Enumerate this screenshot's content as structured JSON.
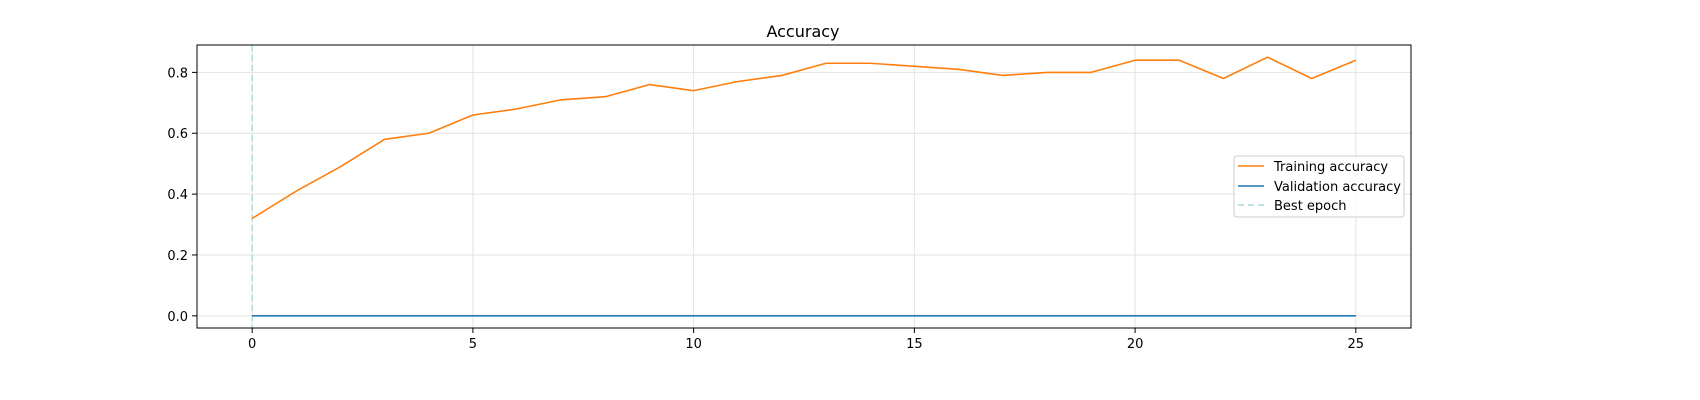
{
  "chart_data": {
    "type": "line",
    "title": "Accuracy",
    "xlabel": "",
    "ylabel": "",
    "x": [
      0,
      1,
      2,
      3,
      4,
      5,
      6,
      7,
      8,
      9,
      10,
      11,
      12,
      13,
      14,
      15,
      16,
      17,
      18,
      19,
      20,
      21,
      22,
      23,
      24,
      25
    ],
    "xlim": [
      -1.25,
      26.25
    ],
    "ylim": [
      -0.04,
      0.89
    ],
    "xticks": [
      0,
      5,
      10,
      15,
      20,
      25
    ],
    "yticks": [
      0.0,
      0.2,
      0.4,
      0.6,
      0.8
    ],
    "ytick_labels": [
      "0.0",
      "0.2",
      "0.4",
      "0.6",
      "0.8"
    ],
    "grid": true,
    "legend_position": "center-right",
    "best_epoch": 0,
    "series": [
      {
        "name": "Training accuracy",
        "color": "#ff7f0e",
        "style": "solid",
        "values": [
          0.32,
          0.41,
          0.49,
          0.58,
          0.6,
          0.66,
          0.68,
          0.71,
          0.72,
          0.76,
          0.74,
          0.77,
          0.79,
          0.83,
          0.83,
          0.82,
          0.81,
          0.79,
          0.8,
          0.8,
          0.84,
          0.84,
          0.78,
          0.85,
          0.78,
          0.84
        ]
      },
      {
        "name": "Validation accuracy",
        "color": "#1f77b4",
        "style": "solid",
        "values": [
          0,
          0,
          0,
          0,
          0,
          0,
          0,
          0,
          0,
          0,
          0,
          0,
          0,
          0,
          0,
          0,
          0,
          0,
          0,
          0,
          0,
          0,
          0,
          0,
          0,
          0
        ]
      }
    ],
    "best_epoch_label": "Best epoch",
    "best_epoch_color": "#a8d8d8"
  }
}
